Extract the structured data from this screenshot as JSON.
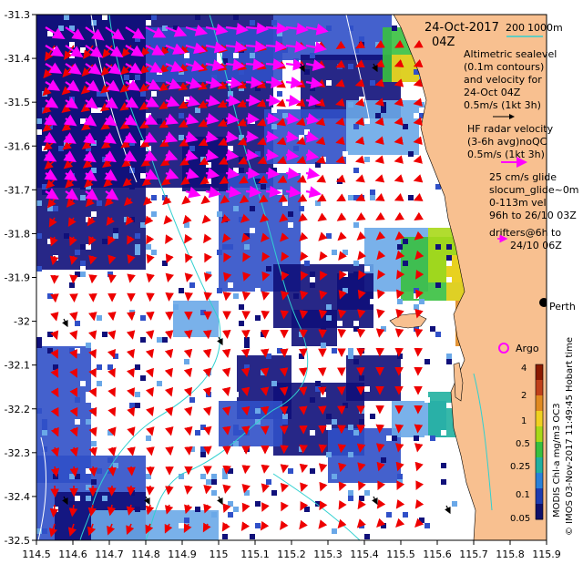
{
  "header": {
    "date": "24-Oct-2017",
    "time": "04Z",
    "bathy_labels": [
      "200",
      "1000m"
    ]
  },
  "legend": {
    "altimetry": [
      "Altimetric sealevel",
      "(0.1m contours)",
      "and velocity for",
      "24-Oct 04Z",
      "0.5m/s (1kt 3h)"
    ],
    "hf_radar": [
      "HF radar velocity",
      "(3-6h avg)noQC",
      "0.5m/s (1kt 3h)"
    ],
    "glider": [
      "25 cm/s glide",
      "slocum_glide~0m",
      "0-113m vel",
      "96h to 26/10 03Z"
    ],
    "drifters": [
      "drifters@6h to",
      "24/10 06Z"
    ]
  },
  "places": {
    "perth": "Perth",
    "argo": "Argo"
  },
  "colorbar": {
    "title": "MODIS Chl-a mg/m3 OC3",
    "ticks": [
      "4",
      "2",
      "1",
      "0.5",
      "0.25",
      "0.1",
      "0.05"
    ],
    "colors": [
      "#8b1a00",
      "#c0401a",
      "#e08a20",
      "#f0d020",
      "#a8d818",
      "#38c040",
      "#20b0a0",
      "#2a80d8",
      "#1e3cb0",
      "#10106a"
    ]
  },
  "credit": "© IMOS 03-Nov-2017 11:49:45 Hobart time",
  "axes": {
    "x_ticks": [
      "114.5",
      "114.6",
      "114.7",
      "114.8",
      "114.9",
      "115",
      "115.1",
      "115.2",
      "115.3",
      "115.4",
      "115.5",
      "115.6",
      "115.7",
      "115.8",
      "115.9"
    ],
    "y_ticks": [
      "-31.3",
      "-31.4",
      "-31.5",
      "-31.6",
      "-31.7",
      "-31.8",
      "-31.9",
      "-32",
      "-32.1",
      "-32.2",
      "-32.3",
      "-32.4",
      "-32.5"
    ],
    "xlim": [
      114.5,
      115.9
    ],
    "ylim": [
      -32.5,
      -31.3
    ]
  },
  "colors": {
    "land": "#f8c090",
    "deep": "#10107a",
    "mid": "#3050c8",
    "light": "#6aa8e8",
    "radar": "#ff00ff",
    "altimetry": "#ee0000",
    "bathy": "#30d0d0"
  }
}
